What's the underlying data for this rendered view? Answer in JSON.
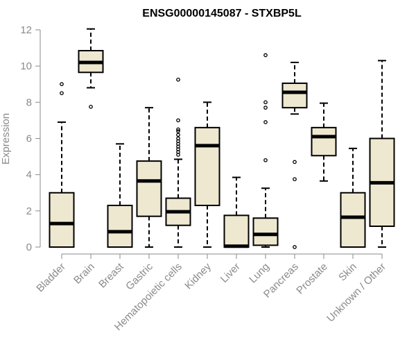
{
  "chart_data": {
    "type": "boxplot",
    "title": "ENSG00000145087 - STXBP5L",
    "xlabel": "",
    "ylabel": "Expression",
    "ylim": [
      0,
      12
    ],
    "yticks": [
      0,
      2,
      4,
      6,
      8,
      10,
      12
    ],
    "box_color": "#EEE8D0",
    "categories": [
      "Bladder",
      "Brain",
      "Breast",
      "Gastric",
      "Hematopoietic cells",
      "Kidney",
      "Liver",
      "Lung",
      "Pancreas",
      "Prostate",
      "Skin",
      "Unknown / Other"
    ],
    "series": [
      {
        "name": "Bladder",
        "min": 0,
        "q1": 0,
        "median": 1.3,
        "q3": 3.0,
        "max": 6.9,
        "outliers": [
          8.5,
          9.0
        ]
      },
      {
        "name": "Brain",
        "min": 8.8,
        "q1": 9.65,
        "median": 10.2,
        "q3": 10.85,
        "max": 12.05,
        "outliers": [
          7.75
        ]
      },
      {
        "name": "Breast",
        "min": 0,
        "q1": 0,
        "median": 0.85,
        "q3": 2.3,
        "max": 5.7,
        "outliers": []
      },
      {
        "name": "Gastric",
        "min": 0,
        "q1": 1.7,
        "median": 3.65,
        "q3": 4.75,
        "max": 7.7,
        "outliers": []
      },
      {
        "name": "Hematopoietic cells",
        "min": 0,
        "q1": 1.2,
        "median": 1.95,
        "q3": 2.7,
        "max": 4.85,
        "outliers": [
          5.1,
          5.25,
          5.4,
          5.55,
          5.7,
          5.85,
          6.0,
          6.2,
          6.4,
          6.5,
          7.0,
          9.25
        ]
      },
      {
        "name": "Kidney",
        "min": 0,
        "q1": 2.3,
        "median": 5.6,
        "q3": 6.6,
        "max": 8.0,
        "outliers": []
      },
      {
        "name": "Liver",
        "min": 0,
        "q1": 0,
        "median": 0.05,
        "q3": 1.75,
        "max": 3.85,
        "outliers": []
      },
      {
        "name": "Lung",
        "min": 0,
        "q1": 0.1,
        "median": 0.7,
        "q3": 1.6,
        "max": 3.25,
        "outliers": [
          4.8,
          6.9,
          7.7,
          8.0,
          10.6
        ]
      },
      {
        "name": "Pancreas",
        "min": 7.35,
        "q1": 7.7,
        "median": 8.55,
        "q3": 9.05,
        "max": 10.2,
        "outliers": [
          0,
          3.75,
          4.7
        ]
      },
      {
        "name": "Prostate",
        "min": 3.65,
        "q1": 5.05,
        "median": 6.1,
        "q3": 6.6,
        "max": 7.95,
        "outliers": []
      },
      {
        "name": "Skin",
        "min": 0,
        "q1": 0,
        "median": 1.65,
        "q3": 3.0,
        "max": 5.45,
        "outliers": []
      },
      {
        "name": "Unknown / Other",
        "min": 0,
        "q1": 1.15,
        "median": 3.55,
        "q3": 6.0,
        "max": 10.3,
        "outliers": []
      }
    ]
  }
}
